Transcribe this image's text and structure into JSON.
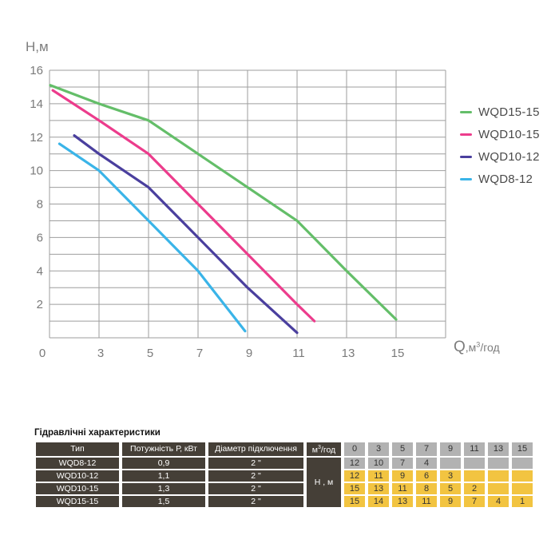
{
  "chart": {
    "y_axis_label": "Н,м",
    "x_axis_label": {
      "q": "Q",
      "mid": ",м",
      "sup": "3",
      "suffix": "/год"
    },
    "y_tick_labels": [
      16,
      14,
      12,
      10,
      8,
      6,
      4,
      2
    ],
    "x_tick_labels": [
      0,
      3,
      5,
      7,
      9,
      11,
      13,
      15
    ],
    "grid_color": "#9e9e9e",
    "tick_label_color": "#7a7a7a",
    "legend": [
      {
        "label": "WQD15-15",
        "color": "#64be69"
      },
      {
        "label": "WQD10-15",
        "color": "#ec3c8c"
      },
      {
        "label": "WQD10-12",
        "color": "#4a3f9e"
      },
      {
        "label": "WQD8-12",
        "color": "#3ab4e8"
      }
    ]
  },
  "chart_data": {
    "type": "line",
    "title": "",
    "xlabel": "Q, м3/год",
    "ylabel": "Н, м",
    "x_ticks": [
      0,
      3,
      5,
      7,
      9,
      11,
      13,
      15
    ],
    "y_ticks": [
      2,
      4,
      6,
      8,
      10,
      12,
      14,
      16
    ],
    "ylim": [
      0,
      16
    ],
    "grid": true,
    "legend_position": "right",
    "series": [
      {
        "name": "WQD15-15",
        "color": "#64be69",
        "points": [
          [
            0.05,
            15.1
          ],
          [
            3,
            14
          ],
          [
            5,
            13
          ],
          [
            7,
            11
          ],
          [
            9,
            9
          ],
          [
            11,
            7
          ],
          [
            13,
            4
          ],
          [
            15,
            1.1
          ]
        ]
      },
      {
        "name": "WQD10-15",
        "color": "#ec3c8c",
        "points": [
          [
            0.2,
            14.8
          ],
          [
            3,
            13
          ],
          [
            5,
            11
          ],
          [
            7,
            8
          ],
          [
            9,
            5
          ],
          [
            11,
            2
          ],
          [
            11.7,
            1.0
          ]
        ]
      },
      {
        "name": "WQD10-12",
        "color": "#4a3f9e",
        "points": [
          [
            1.5,
            12.1
          ],
          [
            3,
            11
          ],
          [
            5,
            9
          ],
          [
            7,
            6
          ],
          [
            9,
            3
          ],
          [
            11,
            0.3
          ]
        ]
      },
      {
        "name": "WQD8-12",
        "color": "#3ab4e8",
        "points": [
          [
            0.6,
            11.6
          ],
          [
            3,
            10
          ],
          [
            5,
            7
          ],
          [
            7,
            4
          ],
          [
            8.9,
            0.4
          ]
        ]
      }
    ]
  },
  "table": {
    "title": "Гідравлічні характеристики",
    "headers": {
      "type": "Тип",
      "power": "Потужність Р, кВт",
      "diameter": "Діаметр підключення",
      "flow": {
        "prefix": "м",
        "sup": "3",
        "suffix": "/год"
      },
      "flow_ticks": [
        "0",
        "3",
        "5",
        "7",
        "9",
        "11",
        "13",
        "15"
      ]
    },
    "head_unit_cell": "Н , м",
    "rows": [
      {
        "type": "WQD8-12",
        "power": "0,9",
        "diameter": "2 \"",
        "highlight": "gray",
        "values": [
          "12",
          "10",
          "7",
          "4",
          "",
          "",
          "",
          ""
        ]
      },
      {
        "type": "WQD10-12",
        "power": "1,1",
        "diameter": "2 \"",
        "highlight": "yellow",
        "values": [
          "12",
          "11",
          "9",
          "6",
          "3",
          "",
          "",
          ""
        ]
      },
      {
        "type": "WQD10-15",
        "power": "1,3",
        "diameter": "2 \"",
        "highlight": "yellow",
        "values": [
          "15",
          "13",
          "11",
          "8",
          "5",
          "2",
          "",
          ""
        ]
      },
      {
        "type": "WQD15-15",
        "power": "1,5",
        "diameter": "2 \"",
        "highlight": "yellow",
        "values": [
          "15",
          "14",
          "13",
          "11",
          "9",
          "7",
          "4",
          "1"
        ]
      }
    ],
    "colors": {
      "header_bg": "#453f37",
      "header_text": "#ffffff",
      "gray_cell": "#b2b2b2",
      "yellow_cell": "#f2c441",
      "value_text": "#333333"
    }
  }
}
